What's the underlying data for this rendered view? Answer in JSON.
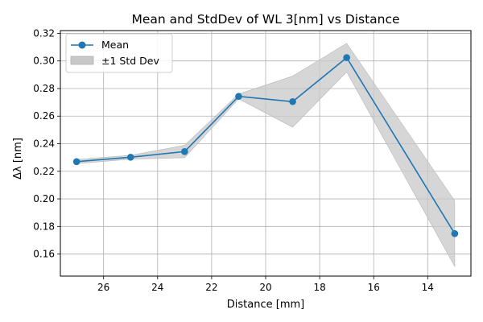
{
  "chart_data": {
    "type": "line",
    "title": "Mean and StdDev of WL 3[nm] vs Distance",
    "xlabel": "Distance [mm]",
    "ylabel": "Δλ [nm]",
    "x_reversed": true,
    "xlim": [
      27.6,
      12.4
    ],
    "ylim": [
      0.144,
      0.322
    ],
    "xticks": [
      "26",
      "24",
      "22",
      "20",
      "18",
      "16",
      "14"
    ],
    "xtick_values": [
      26,
      24,
      22,
      20,
      18,
      16,
      14
    ],
    "yticks": [
      "0.16",
      "0.18",
      "0.20",
      "0.22",
      "0.24",
      "0.26",
      "0.28",
      "0.30",
      "0.32"
    ],
    "ytick_values": [
      0.16,
      0.18,
      0.2,
      0.22,
      0.24,
      0.26,
      0.28,
      0.3,
      0.32
    ],
    "grid": true,
    "legend_position": "top-left",
    "series": [
      {
        "name": "Mean",
        "x": [
          27,
          25,
          23,
          21,
          19,
          17,
          13
        ],
        "values": [
          0.227,
          0.2302,
          0.2343,
          0.2743,
          0.2705,
          0.3024,
          0.1748
        ],
        "color": "#1f77b4",
        "marker": "circle"
      }
    ],
    "band": {
      "name": "±1 Std Dev",
      "x": [
        27,
        25,
        23,
        21,
        19,
        17,
        13
      ],
      "lower": [
        0.2255,
        0.2288,
        0.2298,
        0.2725,
        0.252,
        0.292,
        0.151
      ],
      "upper": [
        0.2285,
        0.2316,
        0.2388,
        0.276,
        0.289,
        0.3128,
        0.1986
      ],
      "color": "#c8c8c8"
    }
  }
}
